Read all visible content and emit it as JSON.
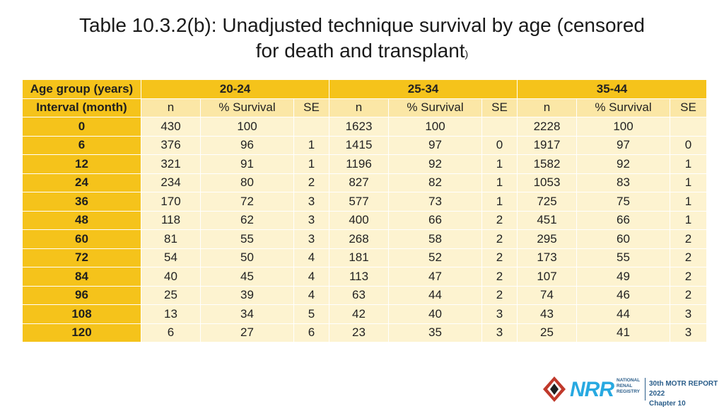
{
  "title": {
    "line1": "Table 10.3.2(b): Unadjusted technique survival by age (censored",
    "line2": "for death and transplant",
    "line2_suffix": ")"
  },
  "table": {
    "row_header_1": "Age group (years)",
    "row_header_2": "Interval (month)",
    "groups": [
      "20-24",
      "25-34",
      "35-44"
    ],
    "subheaders": [
      "n",
      "% Survival",
      "SE"
    ],
    "rows": [
      {
        "interval": "0",
        "values": [
          "430",
          "100",
          "",
          "1623",
          "100",
          "",
          "2228",
          "100",
          ""
        ]
      },
      {
        "interval": "6",
        "values": [
          "376",
          "96",
          "1",
          "1415",
          "97",
          "0",
          "1917",
          "97",
          "0"
        ]
      },
      {
        "interval": "12",
        "values": [
          "321",
          "91",
          "1",
          "1196",
          "92",
          "1",
          "1582",
          "92",
          "1"
        ]
      },
      {
        "interval": "24",
        "values": [
          "234",
          "80",
          "2",
          "827",
          "82",
          "1",
          "1053",
          "83",
          "1"
        ]
      },
      {
        "interval": "36",
        "values": [
          "170",
          "72",
          "3",
          "577",
          "73",
          "1",
          "725",
          "75",
          "1"
        ]
      },
      {
        "interval": "48",
        "values": [
          "118",
          "62",
          "3",
          "400",
          "66",
          "2",
          "451",
          "66",
          "1"
        ]
      },
      {
        "interval": "60",
        "values": [
          "81",
          "55",
          "3",
          "268",
          "58",
          "2",
          "295",
          "60",
          "2"
        ]
      },
      {
        "interval": "72",
        "values": [
          "54",
          "50",
          "4",
          "181",
          "52",
          "2",
          "173",
          "55",
          "2"
        ]
      },
      {
        "interval": "84",
        "values": [
          "40",
          "45",
          "4",
          "113",
          "47",
          "2",
          "107",
          "49",
          "2"
        ]
      },
      {
        "interval": "96",
        "values": [
          "25",
          "39",
          "4",
          "63",
          "44",
          "2",
          "74",
          "46",
          "2"
        ]
      },
      {
        "interval": "108",
        "values": [
          "13",
          "34",
          "5",
          "42",
          "40",
          "3",
          "43",
          "44",
          "3"
        ]
      },
      {
        "interval": "120",
        "values": [
          "6",
          "27",
          "6",
          "23",
          "35",
          "3",
          "25",
          "41",
          "3"
        ]
      }
    ]
  },
  "footer": {
    "logo_text": "NRR",
    "logo_sub": [
      "NATIONAL",
      "RENAL",
      "REGISTRY"
    ],
    "report_line1": "30th MOTR REPORT 2022",
    "report_line2": "Chapter 10"
  },
  "colors": {
    "header_gold": "#f5c31b",
    "subheader": "#fbe7a6",
    "cell": "#fdf3d0",
    "nrr_blue": "#27a9e1",
    "navy": "#2a5d8a"
  }
}
